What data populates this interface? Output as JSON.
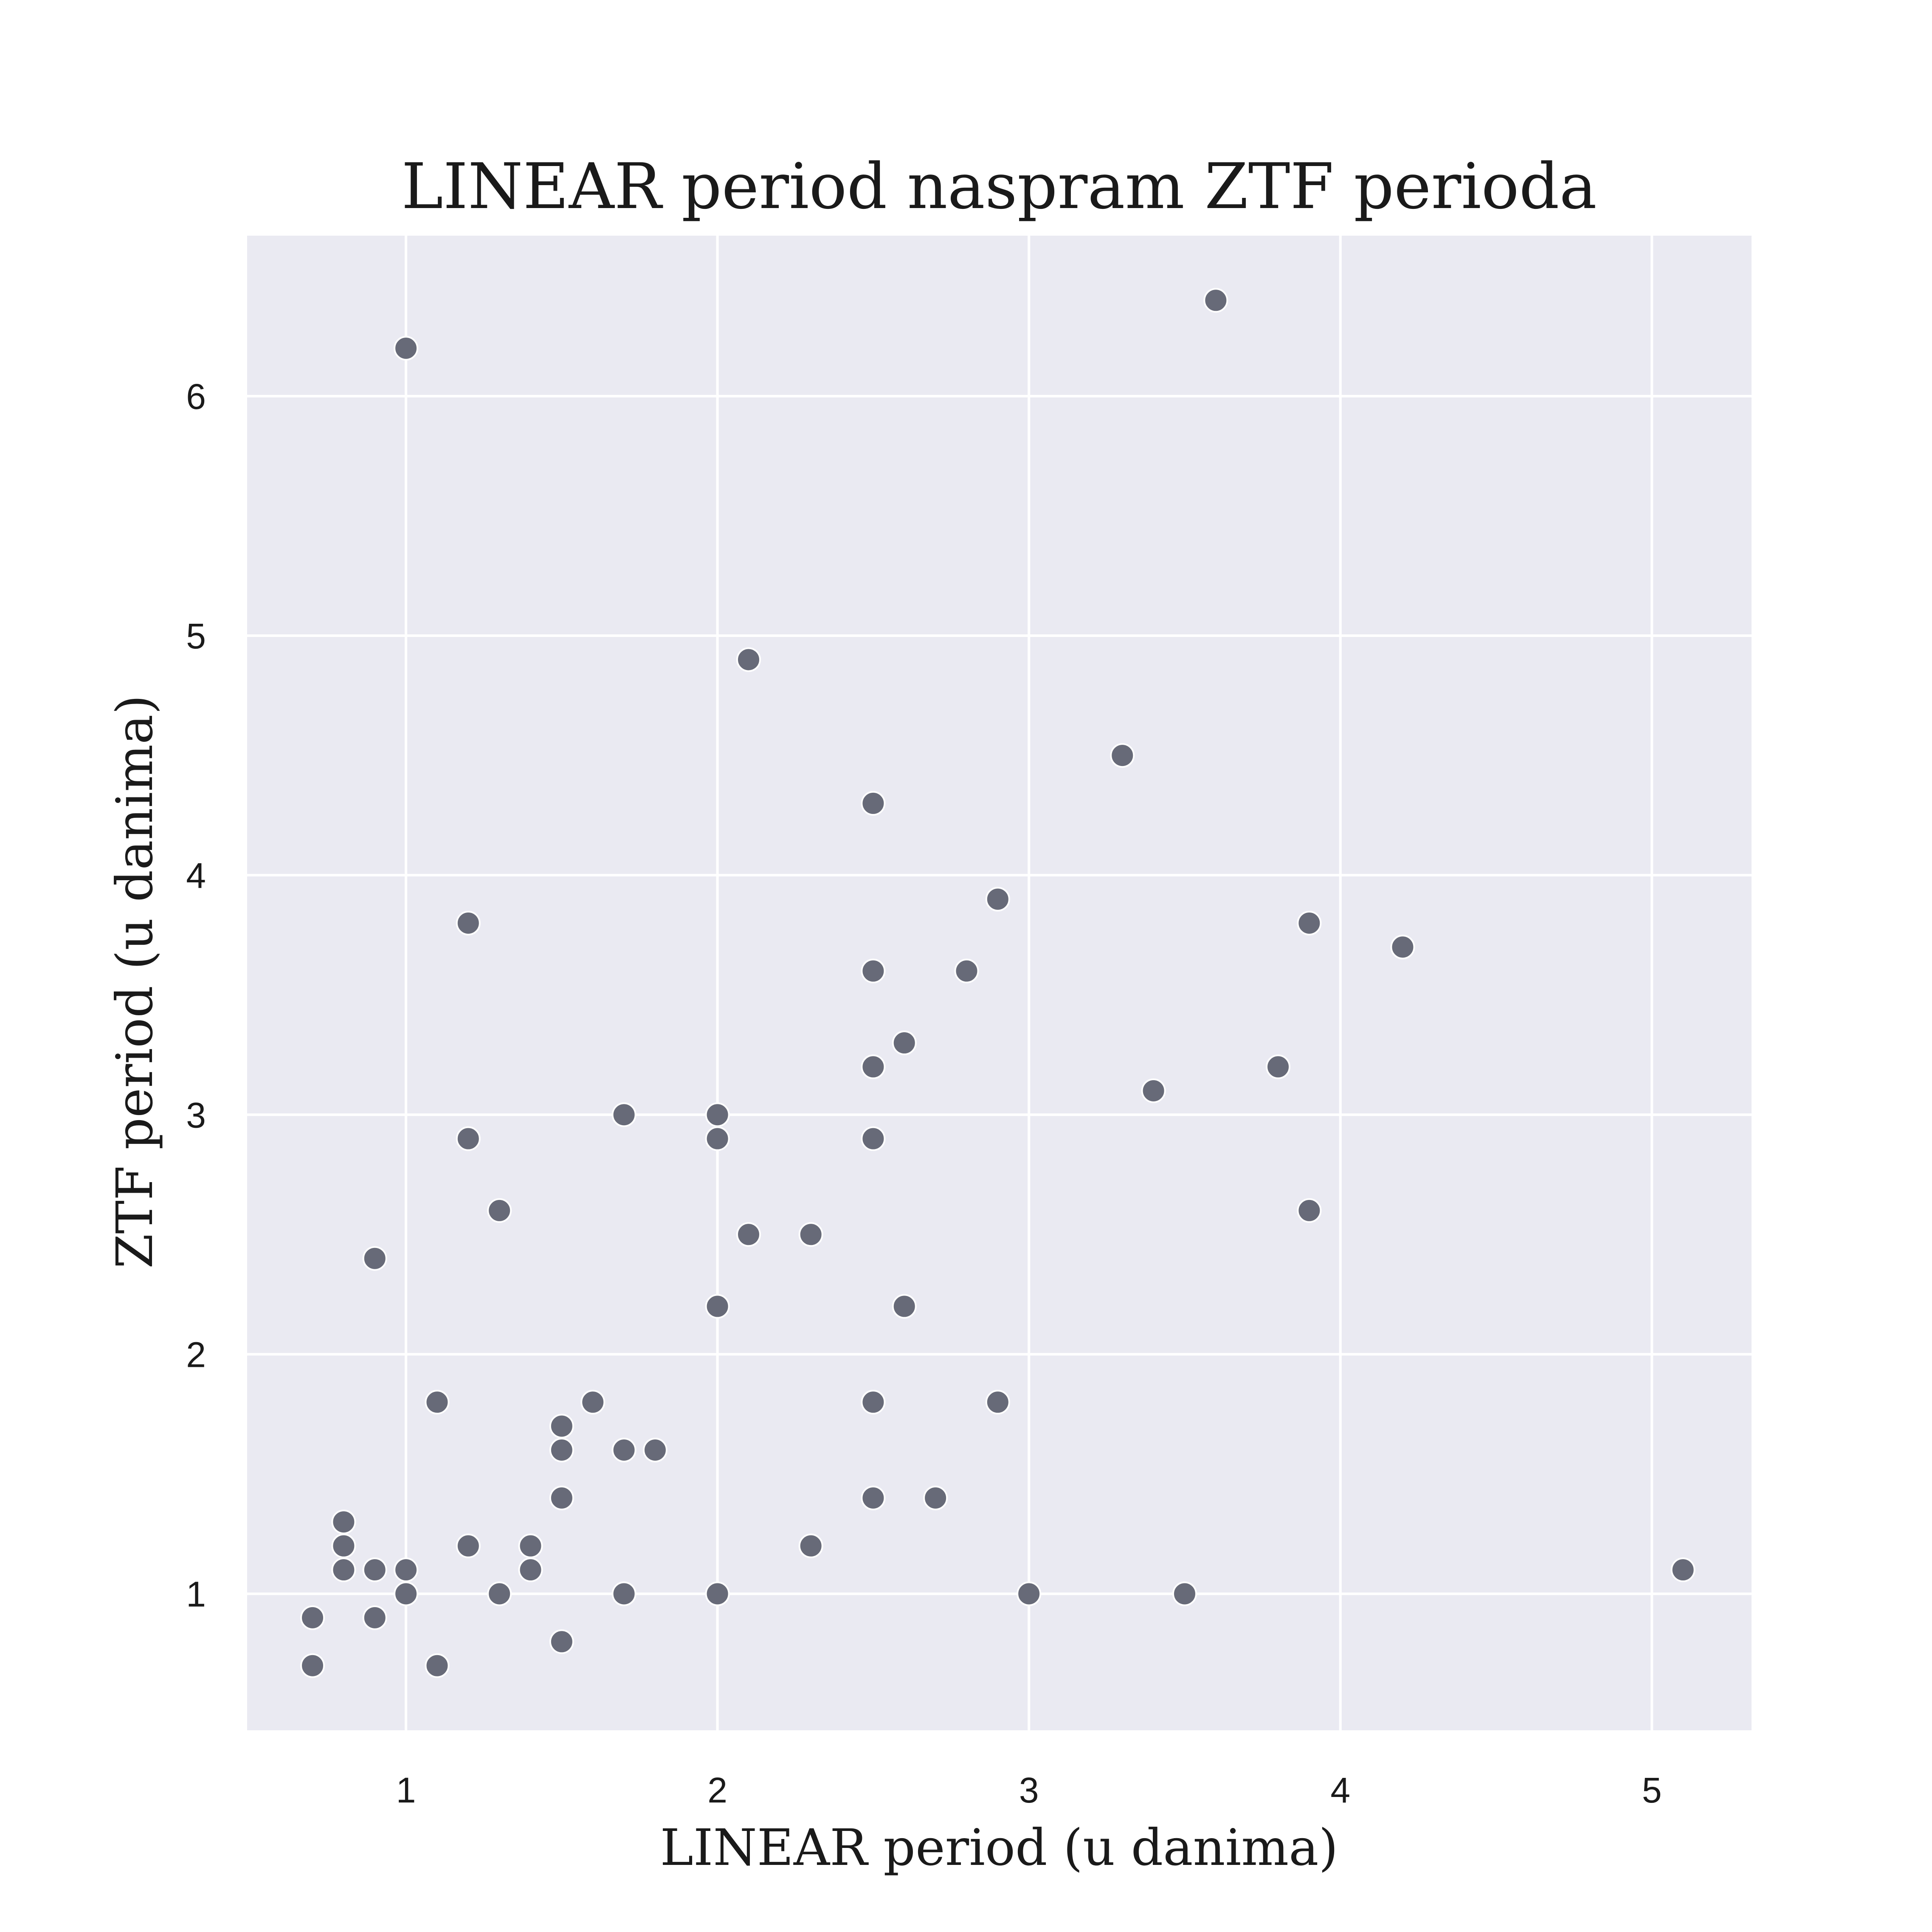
{
  "chart_data": {
    "type": "scatter",
    "title": "LINEAR period naspram ZTF perioda",
    "xlabel": "LINEAR period (u danima)",
    "ylabel": "ZTF period (u danima)",
    "xlim": [
      0.49,
      5.32
    ],
    "ylim": [
      0.43,
      6.67
    ],
    "xticks": [
      1,
      2,
      3,
      4,
      5
    ],
    "yticks": [
      1,
      2,
      3,
      4,
      5,
      6
    ],
    "grid": true,
    "colors": {
      "background": "#eaeaf2",
      "point": "#676a78",
      "grid": "#ffffff"
    },
    "points": [
      [
        1.0,
        6.2
      ],
      [
        3.6,
        6.4
      ],
      [
        2.1,
        4.9
      ],
      [
        3.3,
        4.5
      ],
      [
        2.5,
        4.3
      ],
      [
        2.9,
        3.9
      ],
      [
        1.2,
        3.8
      ],
      [
        3.9,
        3.8
      ],
      [
        4.2,
        3.7
      ],
      [
        2.5,
        3.6
      ],
      [
        2.8,
        3.6
      ],
      [
        2.6,
        3.3
      ],
      [
        2.5,
        3.2
      ],
      [
        3.8,
        3.2
      ],
      [
        3.4,
        3.1
      ],
      [
        1.7,
        3.0
      ],
      [
        2.0,
        3.0
      ],
      [
        1.2,
        2.9
      ],
      [
        2.0,
        2.9
      ],
      [
        2.5,
        2.9
      ],
      [
        1.3,
        2.6
      ],
      [
        3.9,
        2.6
      ],
      [
        2.1,
        2.5
      ],
      [
        2.3,
        2.5
      ],
      [
        0.9,
        2.4
      ],
      [
        2.0,
        2.2
      ],
      [
        2.6,
        2.2
      ],
      [
        1.1,
        1.8
      ],
      [
        1.6,
        1.8
      ],
      [
        2.5,
        1.8
      ],
      [
        2.9,
        1.8
      ],
      [
        1.5,
        1.7
      ],
      [
        1.5,
        1.6
      ],
      [
        1.7,
        1.6
      ],
      [
        1.8,
        1.6
      ],
      [
        1.5,
        1.4
      ],
      [
        2.5,
        1.4
      ],
      [
        2.7,
        1.4
      ],
      [
        0.8,
        1.3
      ],
      [
        0.8,
        1.2
      ],
      [
        1.2,
        1.2
      ],
      [
        1.4,
        1.2
      ],
      [
        2.3,
        1.2
      ],
      [
        0.8,
        1.1
      ],
      [
        0.9,
        1.1
      ],
      [
        1.0,
        1.1
      ],
      [
        1.4,
        1.1
      ],
      [
        5.1,
        1.1
      ],
      [
        1.0,
        1.0
      ],
      [
        1.3,
        1.0
      ],
      [
        1.7,
        1.0
      ],
      [
        2.0,
        1.0
      ],
      [
        3.0,
        1.0
      ],
      [
        3.5,
        1.0
      ],
      [
        0.7,
        0.9
      ],
      [
        0.9,
        0.9
      ],
      [
        1.5,
        0.8
      ],
      [
        0.7,
        0.7
      ],
      [
        1.1,
        0.7
      ]
    ]
  }
}
